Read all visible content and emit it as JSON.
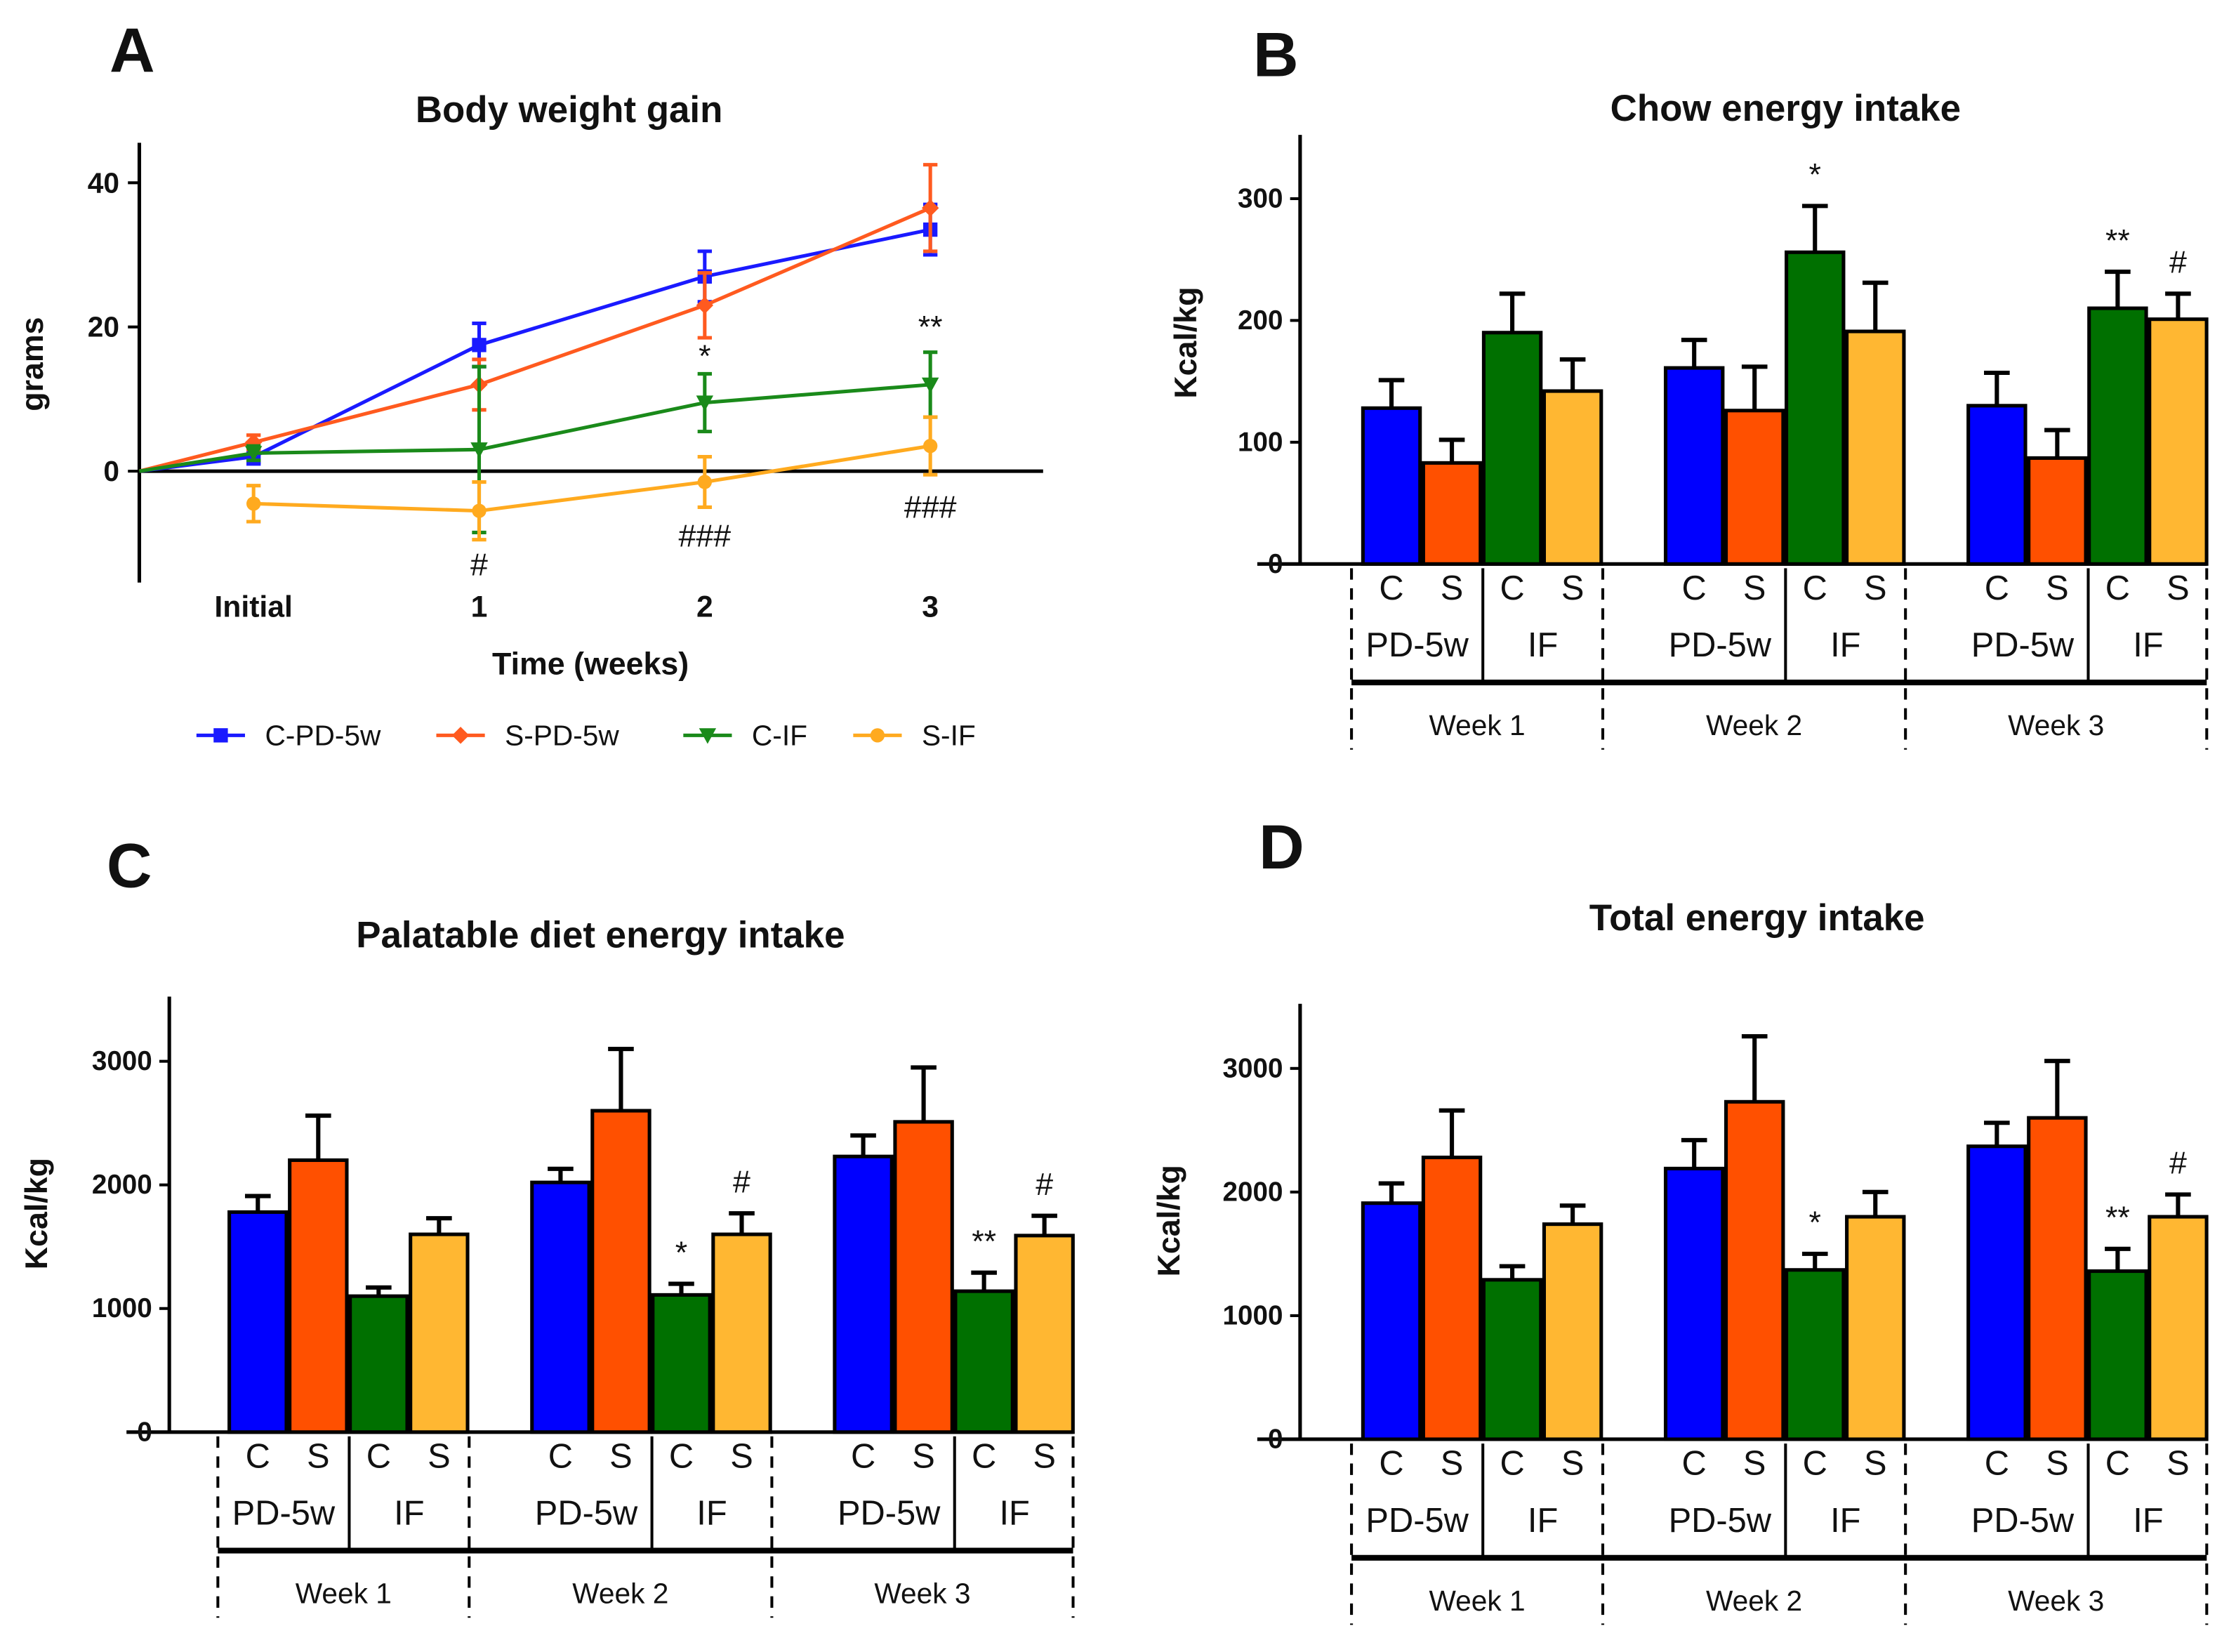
{
  "colors": {
    "C-PD-5w": "#0000ff",
    "S-PD-5w": "#ff5000",
    "C-IF": "#007000",
    "S-IF": "#ffb732"
  },
  "line_colors": {
    "C-PD-5w": "#1a1aff",
    "S-PD-5w": "#ff5a1f",
    "C-IF": "#1a8a1a",
    "S-IF": "#ffaa1f"
  },
  "chart_data": [
    {
      "panel": "A",
      "type": "line",
      "title": "Body weight gain",
      "xlabel": "Time (weeks)",
      "ylabel": "grams",
      "categories": [
        "Initial",
        "1",
        "2",
        "3"
      ],
      "yticks": [
        0,
        20,
        40
      ],
      "ylim": [
        -15,
        45
      ],
      "legend_position": "bottom",
      "series": [
        {
          "name": "C-PD-5w",
          "marker": "square",
          "values": [
            2,
            17.5,
            27,
            33.5
          ],
          "errors": [
            1,
            3,
            3.5,
            3.5
          ]
        },
        {
          "name": "S-PD-5w",
          "marker": "diamond",
          "values": [
            4,
            12,
            23,
            36.5
          ],
          "errors": [
            1,
            3.5,
            4.5,
            6
          ]
        },
        {
          "name": "C-IF",
          "marker": "triangle-down",
          "values": [
            2.5,
            3,
            9.5,
            12
          ],
          "errors": [
            1,
            11.5,
            4,
            4.5
          ]
        },
        {
          "name": "S-IF",
          "marker": "circle",
          "values": [
            -4.5,
            -5.5,
            -1.5,
            3.5
          ],
          "errors": [
            2.5,
            4,
            3.5,
            4
          ]
        }
      ],
      "annotations": [
        {
          "x": "1",
          "y": -13,
          "text": "#"
        },
        {
          "x": "2",
          "y": 16,
          "text": "*"
        },
        {
          "x": "2",
          "y": -9,
          "text": "###"
        },
        {
          "x": "3",
          "y": 20,
          "text": "**"
        },
        {
          "x": "3",
          "y": -5,
          "text": "###"
        }
      ]
    },
    {
      "panel": "B",
      "type": "bar",
      "title": "Chow energy intake",
      "ylabel": "Kcal/kg",
      "yticks": [
        0,
        100,
        200,
        300
      ],
      "ylim": [
        0,
        350
      ],
      "groups": [
        "Week 1",
        "Week 2",
        "Week 3"
      ],
      "series": [
        "C-PD-5w",
        "S-PD-5w",
        "C-IF",
        "S-IF"
      ],
      "values": [
        [
          128,
          83,
          190,
          142
        ],
        [
          161,
          126,
          256,
          191
        ],
        [
          130,
          87,
          210,
          201
        ]
      ],
      "error_tops": [
        [
          151,
          102,
          222,
          168
        ],
        [
          184,
          162,
          294,
          231
        ],
        [
          157,
          110,
          240,
          222
        ]
      ],
      "annotations": [
        {
          "group": 1,
          "bar": 2,
          "text": "*"
        },
        {
          "group": 2,
          "bar": 2,
          "text": "**"
        },
        {
          "group": 2,
          "bar": 3,
          "text": "#"
        }
      ]
    },
    {
      "panel": "C",
      "type": "bar",
      "title": "Palatable diet energy intake",
      "ylabel": "Kcal/kg",
      "yticks": [
        0,
        1000,
        2000,
        3000
      ],
      "ylim": [
        0,
        3500
      ],
      "groups": [
        "Week 1",
        "Week 2",
        "Week 3"
      ],
      "series": [
        "C-PD-5w",
        "S-PD-5w",
        "C-IF",
        "S-IF"
      ],
      "values": [
        [
          1780,
          2200,
          1100,
          1600
        ],
        [
          2020,
          2600,
          1110,
          1600
        ],
        [
          2230,
          2510,
          1140,
          1590
        ]
      ],
      "error_tops": [
        [
          1910,
          2560,
          1170,
          1730
        ],
        [
          2130,
          3100,
          1200,
          1770
        ],
        [
          2400,
          2950,
          1290,
          1750
        ]
      ],
      "annotations": [
        {
          "group": 1,
          "bar": 2,
          "text": "*"
        },
        {
          "group": 1,
          "bar": 3,
          "text": "#"
        },
        {
          "group": 2,
          "bar": 2,
          "text": "**"
        },
        {
          "group": 2,
          "bar": 3,
          "text": "#"
        }
      ]
    },
    {
      "panel": "D",
      "type": "bar",
      "title": "Total energy intake",
      "ylabel": "Kcal/kg",
      "yticks": [
        0,
        1000,
        2000,
        3000
      ],
      "ylim": [
        0,
        3500
      ],
      "groups": [
        "Week 1",
        "Week 2",
        "Week 3"
      ],
      "series": [
        "C-PD-5w",
        "S-PD-5w",
        "C-IF",
        "S-IF"
      ],
      "values": [
        [
          1910,
          2280,
          1290,
          1740
        ],
        [
          2190,
          2730,
          1370,
          1800
        ],
        [
          2370,
          2600,
          1360,
          1800
        ]
      ],
      "error_tops": [
        [
          2070,
          2660,
          1400,
          1890
        ],
        [
          2420,
          3260,
          1500,
          2000
        ],
        [
          2560,
          3060,
          1540,
          1980
        ]
      ],
      "annotations": [
        {
          "group": 1,
          "bar": 2,
          "text": "*"
        },
        {
          "group": 2,
          "bar": 2,
          "text": "**"
        },
        {
          "group": 2,
          "bar": 3,
          "text": "#"
        }
      ]
    }
  ],
  "bar_axis_labels": {
    "cs": [
      "C",
      "S",
      "C",
      "S"
    ],
    "diet": [
      "PD-5w",
      "IF"
    ]
  }
}
